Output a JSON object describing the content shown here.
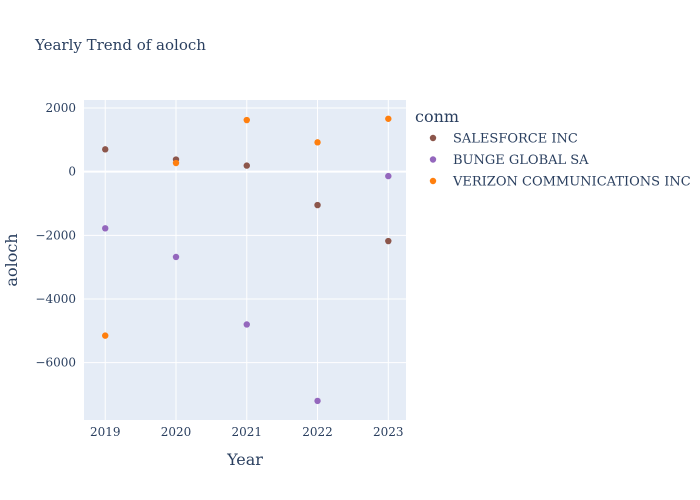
{
  "chart_data": {
    "type": "scatter",
    "title": "Yearly Trend of aoloch",
    "xlabel": "Year",
    "ylabel": "aoloch",
    "x": [
      2019,
      2020,
      2021,
      2022,
      2023
    ],
    "xlim": [
      2018.7,
      2023.25
    ],
    "ylim": [
      -7800,
      2250
    ],
    "yticks": [
      2000,
      0,
      -2000,
      -4000,
      -6000
    ],
    "ytick_labels": [
      "2000",
      "0",
      "−2000",
      "−4000",
      "−6000"
    ],
    "xtick_labels": [
      "2019",
      "2020",
      "2021",
      "2022",
      "2023"
    ],
    "grid": true,
    "legend": {
      "title": "conm",
      "placement": "right"
    },
    "series": [
      {
        "name": "SALESFORCE INC",
        "color": "#8c564b",
        "values": [
          700,
          380,
          190,
          -1050,
          -2180
        ]
      },
      {
        "name": "BUNGE GLOBAL SA",
        "color": "#9467bd",
        "values": [
          -1780,
          -2680,
          -4800,
          -7200,
          -140
        ]
      },
      {
        "name": "VERIZON COMMUNICATIONS INC",
        "color": "#ff7f0e",
        "values": [
          -5150,
          270,
          1620,
          920,
          1660
        ]
      }
    ]
  }
}
